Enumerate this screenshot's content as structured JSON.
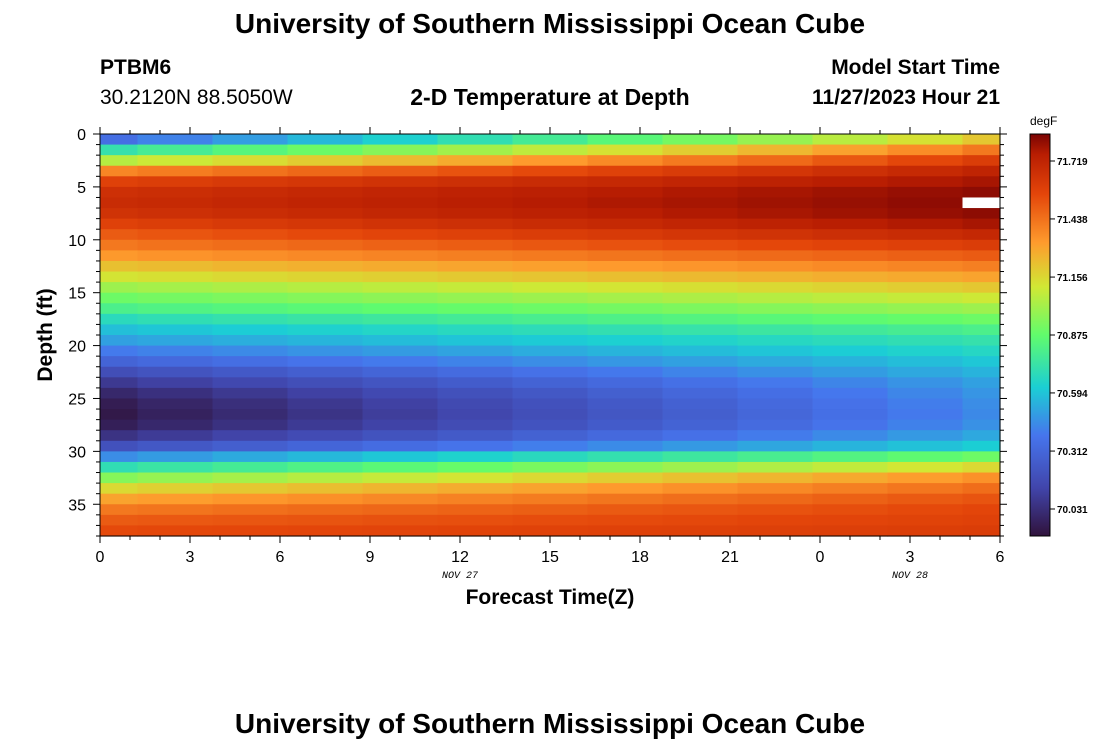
{
  "header": {
    "title_top": "University of Southern Mississippi Ocean Cube",
    "station": "PTBM6",
    "location": "30.2120N  88.5050W",
    "plot_title": "2-D Temperature at Depth",
    "start_label": "Model Start Time",
    "start_value": "11/27/2023 Hour 21",
    "title_bottom": "University of Southern Mississippi Ocean Cube"
  },
  "chart_data": {
    "type": "heatmap",
    "title": "2-D Temperature at Depth",
    "xlabel": "Forecast Time(Z)",
    "ylabel": "Depth (ft)",
    "x_tick_labels": [
      "0",
      "3",
      "6",
      "9",
      "12",
      "15",
      "18",
      "21",
      "0",
      "3",
      "6"
    ],
    "x_hours": [
      0,
      3,
      6,
      9,
      12,
      15,
      18,
      21,
      24,
      27,
      30
    ],
    "date_labels": [
      {
        "text": "NOV 27",
        "hour": 12
      },
      {
        "text": "NOV 28",
        "hour": 27
      }
    ],
    "xlim": [
      0,
      30
    ],
    "y_ticks": [
      0,
      5,
      10,
      15,
      20,
      25,
      30,
      35
    ],
    "ylim": [
      0,
      38
    ],
    "y_inverted": true,
    "colorbar": {
      "unit": "degF",
      "min": 69.9,
      "max": 71.85,
      "ticks": [
        "71.719",
        "71.438",
        "71.156",
        "70.875",
        "70.594",
        "70.312",
        "70.031"
      ],
      "tick_values": [
        71.719,
        71.438,
        71.156,
        70.875,
        70.594,
        70.312,
        70.031
      ]
    },
    "time_columns_hours": [
      0,
      2.5,
      5,
      7.5,
      10,
      12.5,
      15,
      17.5,
      20,
      22.5,
      25,
      27.5,
      30
    ],
    "depth_rows_ft": [
      0,
      1,
      2,
      3,
      4,
      5,
      6,
      7,
      8,
      9,
      10,
      11,
      12,
      13,
      14,
      15,
      16,
      17,
      18,
      19,
      20,
      21,
      22,
      23,
      24,
      25,
      26,
      27,
      28,
      29,
      30,
      31,
      32,
      33,
      34,
      35,
      36,
      37
    ],
    "temperature_profile_start_degF": [
      70.35,
      70.72,
      71.05,
      71.38,
      71.58,
      71.66,
      71.68,
      71.65,
      71.58,
      71.5,
      71.42,
      71.33,
      71.22,
      71.12,
      71.0,
      70.9,
      70.8,
      70.68,
      70.58,
      70.5,
      70.4,
      70.3,
      70.18,
      70.08,
      70.0,
      69.95,
      69.93,
      69.96,
      70.05,
      70.2,
      70.45,
      70.7,
      70.95,
      71.15,
      71.3,
      71.42,
      71.5,
      71.55
    ],
    "temperature_profile_end_degF": [
      71.2,
      71.42,
      71.6,
      71.72,
      71.78,
      71.82,
      71.83,
      71.82,
      71.78,
      71.7,
      71.6,
      71.5,
      71.4,
      71.3,
      71.2,
      71.1,
      71.0,
      70.9,
      70.8,
      70.72,
      70.66,
      70.6,
      70.55,
      70.5,
      70.47,
      70.45,
      70.44,
      70.46,
      70.52,
      70.62,
      70.9,
      71.15,
      71.35,
      71.45,
      71.52,
      71.56,
      71.58,
      71.6
    ],
    "gap_cell": {
      "hour": 30,
      "depth_ft": 6
    }
  }
}
